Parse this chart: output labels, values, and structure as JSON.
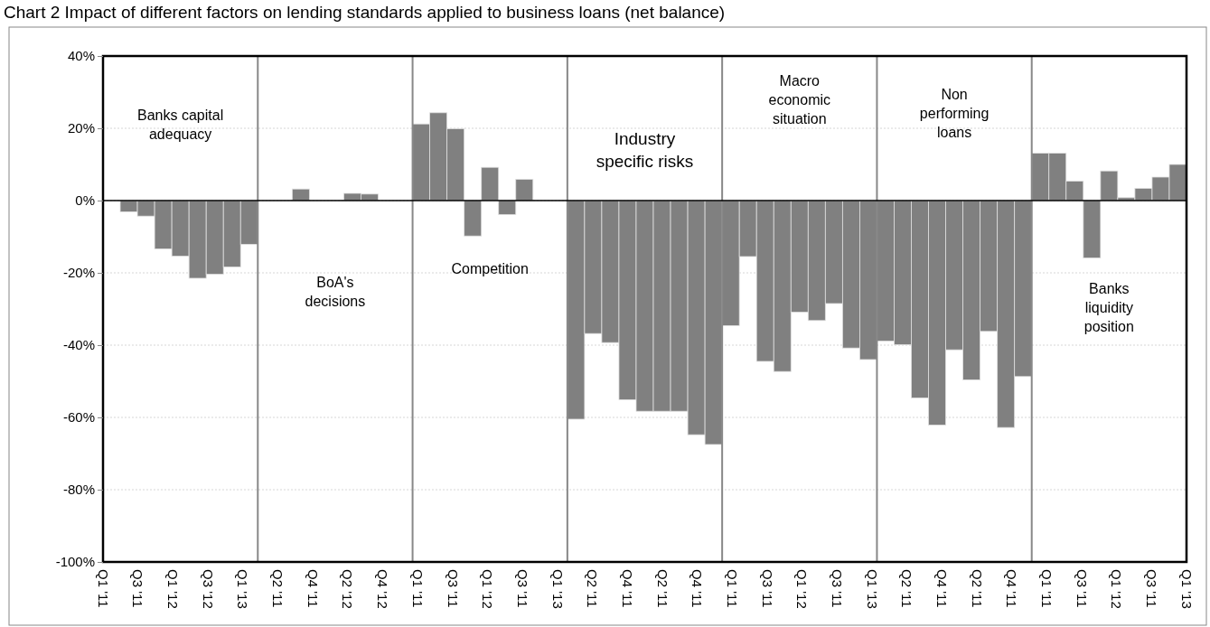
{
  "chart_data": {
    "type": "bar",
    "title": "Chart 2 Impact of different factors on lending standards applied to business loans (net balance)",
    "categories": [
      "Q1 '11",
      null,
      "Q3 '11",
      null,
      "Q1 '12",
      null,
      "Q3 '12",
      null,
      "Q1 '13",
      null,
      "Q2 '11",
      null,
      "Q4 '11",
      null,
      "Q2 '12",
      null,
      "Q4 '12",
      null,
      "Q1 '11",
      null,
      "Q3 '11",
      null,
      "Q1 '12",
      null,
      "Q3 '11",
      null,
      "Q1 '13",
      null,
      "Q2 '11",
      null,
      "Q4 '11",
      null,
      "Q2 '11",
      null,
      "Q4 '11",
      null,
      "Q1 '11",
      null,
      "Q3 '11",
      null,
      "Q1 '12",
      null,
      "Q3 '11",
      null,
      "Q1 '13",
      null,
      "Q2 '11",
      null,
      "Q4 '11",
      null,
      "Q2 '11",
      null,
      "Q4 '11",
      null,
      "Q1 '11",
      null,
      "Q3 '11",
      null,
      "Q1 '12",
      null,
      "Q3 '11",
      null,
      "Q1 '13"
    ],
    "values": [
      0,
      -3.1,
      -4.3,
      -13.4,
      -15.4,
      -21.5,
      -20.4,
      -18.4,
      -12.1,
      0,
      0,
      3.2,
      0,
      0,
      2.0,
      1.8,
      0,
      0,
      21.2,
      24.3,
      19.9,
      -9.8,
      9.2,
      -3.9,
      5.9,
      0,
      0,
      -60.5,
      -36.8,
      -39.3,
      -55.1,
      -58.3,
      -58.3,
      -58.3,
      -64.8,
      -67.5,
      -34.6,
      -15.5,
      -44.5,
      -47.3,
      -30.9,
      -33.2,
      -28.5,
      -40.8,
      -44.0,
      -38.9,
      -39.9,
      -54.6,
      -62.1,
      -41.3,
      -49.6,
      -36.2,
      -62.8,
      -48.7,
      13.1,
      13.1,
      5.4,
      -15.9,
      8.2,
      0.8,
      3.4,
      6.5,
      10.0
    ],
    "color": "#808080",
    "ylim": [
      -100,
      40
    ],
    "yticks": [
      {
        "value": -100,
        "label": "-100%"
      },
      {
        "value": -80,
        "label": "-80%"
      },
      {
        "value": -60,
        "label": "-60%"
      },
      {
        "value": -40,
        "label": "-40%"
      },
      {
        "value": -20,
        "label": "-20%"
      },
      {
        "value": 0,
        "label": "0%"
      },
      {
        "value": 20,
        "label": "20%"
      },
      {
        "value": 40,
        "label": "40%"
      }
    ],
    "grid": "y",
    "annotations": [
      "Banks capital adequacy",
      "BoA's decisions",
      "Competition",
      "Industry specific risks",
      "Macro economic situation",
      "Non performing loans",
      "Banks liquidity position"
    ]
  }
}
